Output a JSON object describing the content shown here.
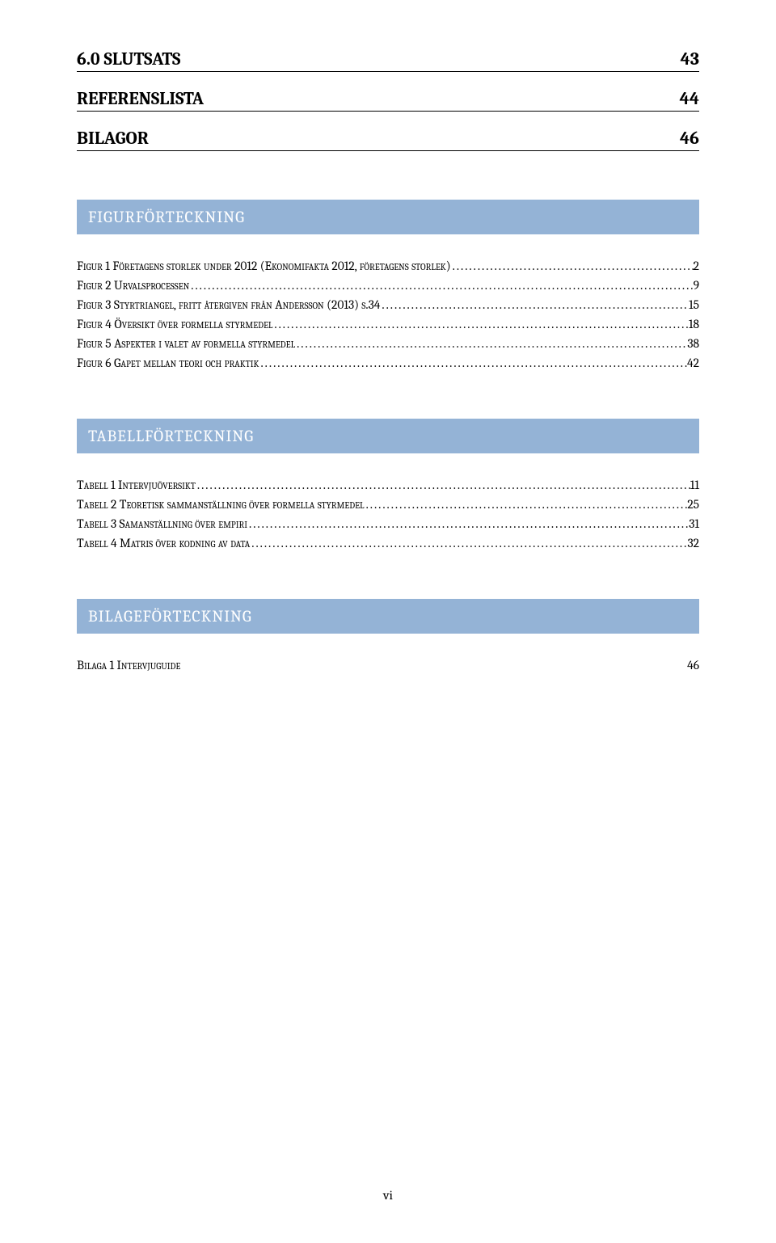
{
  "top_toc": [
    {
      "label": "6.0 SLUTSATS",
      "page": "43"
    },
    {
      "label": "REFERENSLISTA",
      "page": "44"
    },
    {
      "label": "BILAGOR",
      "page": "46"
    }
  ],
  "sections": [
    {
      "title": "FIGURFÖRTECKNING",
      "entries": [
        {
          "label": "Figur 1 Företagens storlek under 2012 (Ekonomifakta 2012, företagens storlek)",
          "page": "2"
        },
        {
          "label": "Figur 2 Urvalsprocessen",
          "page": "9"
        },
        {
          "label": "Figur 3 Styrtriangel, fritt återgiven från Andersson (2013) s.34",
          "page": "15"
        },
        {
          "label": "Figur 4 Översikt över formella styrmedel",
          "page": "18"
        },
        {
          "label": "Figur 5 Aspekter i valet av formella styrmedel",
          "page": "38"
        },
        {
          "label": "Figur 6 Gapet mellan teori och praktik",
          "page": "42"
        }
      ]
    },
    {
      "title": "TABELLFÖRTECKNING",
      "entries": [
        {
          "label": "Tabell 1 Intervjuöversikt",
          "page": "11"
        },
        {
          "label": "Tabell 2 Teoretisk sammanställning över formella styrmedel",
          "page": "25"
        },
        {
          "label": "Tabell 3 Samanställning över empiri",
          "page": "31"
        },
        {
          "label": "Tabell 4 Matris över kodning av data",
          "page": "32"
        }
      ]
    },
    {
      "title": "BILAGEFÖRTECKNING",
      "entries": [
        {
          "label": "Bilaga 1 Intervjuguide",
          "page": "46",
          "nodots": true
        }
      ]
    }
  ],
  "footer": "vi",
  "colors": {
    "header_bg": "#94b3d6",
    "header_text": "#ffffff",
    "body_text": "#000000",
    "page_bg": "#ffffff"
  },
  "dot_leader": "........................................................................................................................................................................................................................................................................"
}
